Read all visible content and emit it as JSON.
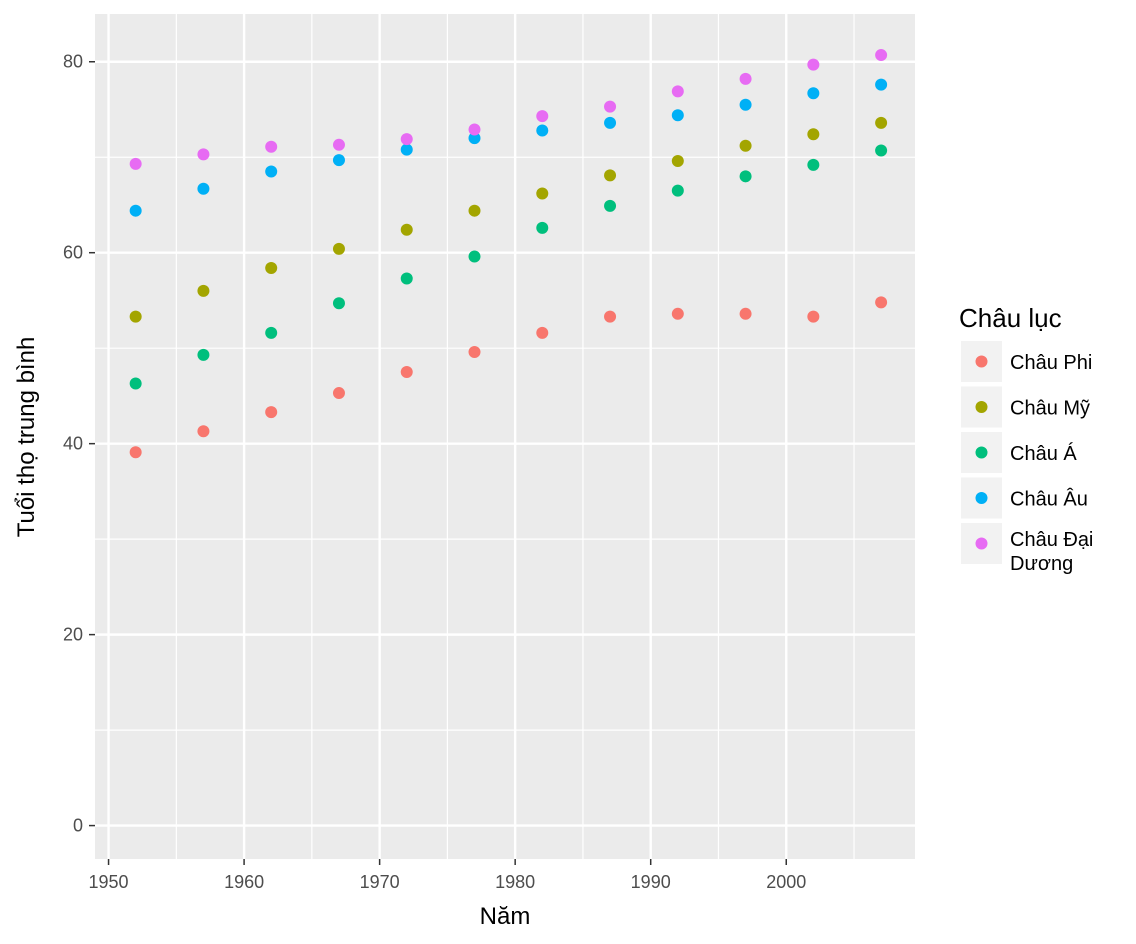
{
  "chart_data": {
    "type": "scatter",
    "title": "",
    "xlabel": "Năm",
    "ylabel": "Tuổi thọ trung bình",
    "xlim": [
      1949,
      2009.5
    ],
    "ylim": [
      -3.5,
      85
    ],
    "x_ticks": [
      1950,
      1960,
      1970,
      1980,
      1990,
      2000
    ],
    "y_ticks": [
      0,
      20,
      40,
      60,
      80
    ],
    "grid": true,
    "legend": {
      "title": "Châu lục",
      "position": "right"
    },
    "x": [
      1952,
      1957,
      1962,
      1967,
      1972,
      1977,
      1982,
      1987,
      1992,
      1997,
      2002,
      2007
    ],
    "series": [
      {
        "name": "Châu Phi",
        "label_lines": [
          "Châu Phi"
        ],
        "color": "#F8766D",
        "values": [
          39.1,
          41.3,
          43.3,
          45.3,
          47.5,
          49.6,
          51.6,
          53.3,
          53.6,
          53.6,
          53.3,
          54.8
        ]
      },
      {
        "name": "Châu Mỹ",
        "label_lines": [
          "Châu Mỹ"
        ],
        "color": "#A3A500",
        "values": [
          53.3,
          56.0,
          58.4,
          60.4,
          62.4,
          64.4,
          66.2,
          68.1,
          69.6,
          71.2,
          72.4,
          73.6
        ]
      },
      {
        "name": "Châu Á",
        "label_lines": [
          "Châu Á"
        ],
        "color": "#00BF7D",
        "values": [
          46.3,
          49.3,
          51.6,
          54.7,
          57.3,
          59.6,
          62.6,
          64.9,
          66.5,
          68.0,
          69.2,
          70.7
        ]
      },
      {
        "name": "Châu Âu",
        "label_lines": [
          "Châu Âu"
        ],
        "color": "#00B0F6",
        "values": [
          64.4,
          66.7,
          68.5,
          69.7,
          70.8,
          72.0,
          72.8,
          73.6,
          74.4,
          75.5,
          76.7,
          77.6
        ]
      },
      {
        "name": "Châu Đại Dương",
        "label_lines": [
          "Châu Đại",
          "Dương"
        ],
        "color": "#E76BF3",
        "values": [
          69.3,
          70.3,
          71.1,
          71.3,
          71.9,
          72.9,
          74.3,
          75.3,
          76.9,
          78.2,
          79.7,
          80.7
        ]
      }
    ]
  }
}
